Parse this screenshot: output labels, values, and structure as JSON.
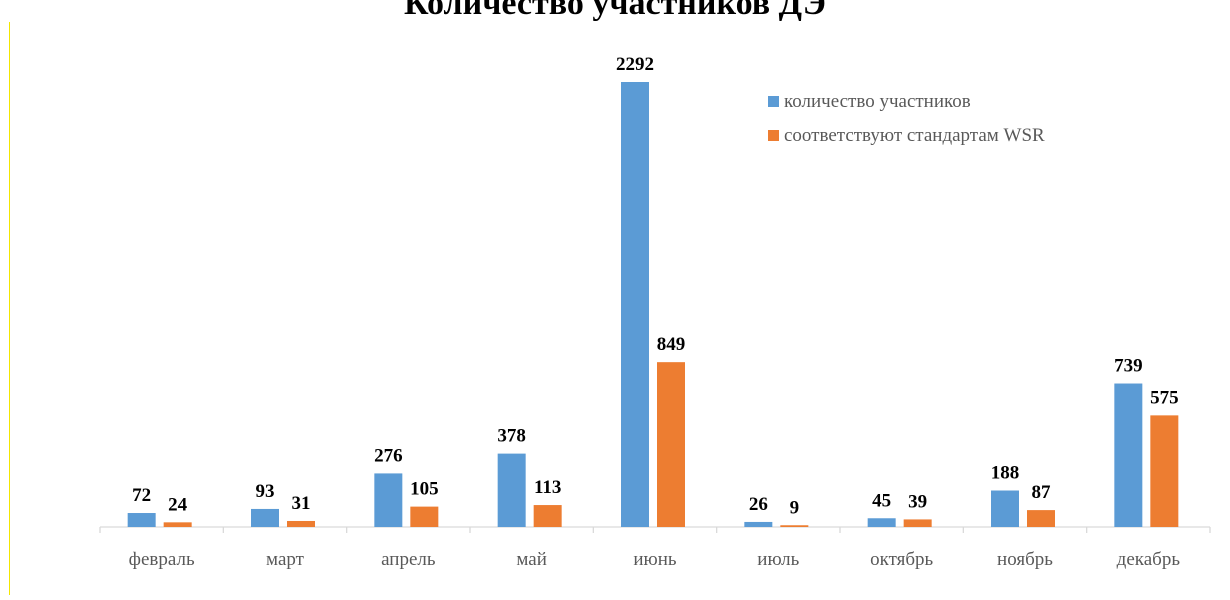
{
  "chart_data": {
    "type": "bar",
    "title": "Количество участников ДЭ",
    "categories": [
      "февраль",
      "март",
      "апрель",
      "май",
      "июнь",
      "июль",
      "октябрь",
      "ноябрь",
      "декабрь"
    ],
    "series": [
      {
        "name": "количество участников",
        "color": "#5b9bd5",
        "values": [
          72,
          93,
          276,
          378,
          2292,
          26,
          45,
          188,
          739
        ]
      },
      {
        "name": "соответствуют стандартам WSR",
        "color": "#ed7d31",
        "values": [
          24,
          31,
          105,
          113,
          849,
          9,
          39,
          87,
          575
        ]
      }
    ],
    "ylim": [
      0,
      2292
    ],
    "data_labels": true,
    "gridlines": false,
    "legend_position": "top-right"
  }
}
